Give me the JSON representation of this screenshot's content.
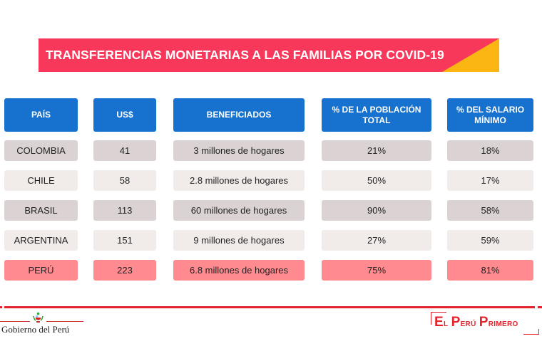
{
  "title": "TRANSFERENCIAS MONETARIAS A LAS FAMILIAS POR COVID-19",
  "colors": {
    "title_bg": "#f8385a",
    "title_accent": "#fbb613",
    "header_bg": "#1772cf",
    "row_dark": "#dbd3d3",
    "row_light": "#f1ebea",
    "row_highlight": "#ff8a8f",
    "rule": "#e5232b"
  },
  "table": {
    "headers": [
      "PAÍS",
      "US$",
      "BENEFICIADOS",
      "% DE LA POBLACIÓN TOTAL",
      "% DEL SALARIO MÍNIMO"
    ],
    "rows": [
      {
        "pais": "COLOMBIA",
        "usd": "41",
        "beneficiados": "3 millones de hogares",
        "poblacion": "21%",
        "salario": "18%",
        "style": "dark"
      },
      {
        "pais": "CHILE",
        "usd": "58",
        "beneficiados": "2.8  millones de hogares",
        "poblacion": "50%",
        "salario": "17%",
        "style": "light"
      },
      {
        "pais": "BRASIL",
        "usd": "113",
        "beneficiados": "60 millones de hogares",
        "poblacion": "90%",
        "salario": "58%",
        "style": "dark"
      },
      {
        "pais": "ARGENTINA",
        "usd": "151",
        "beneficiados": "9 millones de hogares",
        "poblacion": "27%",
        "salario": "59%",
        "style": "light"
      },
      {
        "pais": "PERÚ",
        "usd": "223",
        "beneficiados": "6.8 millones de hogares",
        "poblacion": "75%",
        "salario": "81%",
        "style": "highlight"
      }
    ]
  },
  "footer": {
    "gov_label": "Gobierno del Perú",
    "gov_icon": "peru-coat-of-arms-icon",
    "brand_first": "E",
    "brand_rest1": "l ",
    "brand_p": "P",
    "brand_rest2": "erú ",
    "brand_p2": "P",
    "brand_rest3": "rimero",
    "brand_full": "El Perú Primero"
  }
}
